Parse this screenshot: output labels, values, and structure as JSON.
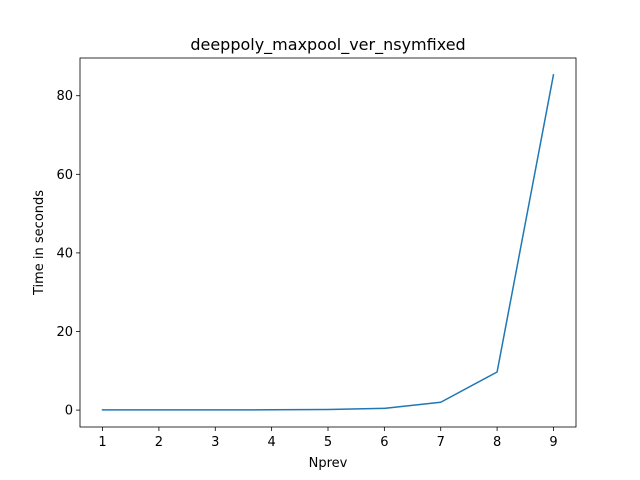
{
  "chart_data": {
    "type": "line",
    "title": "deeppoly_maxpool_ver_nsymfixed",
    "xlabel": "Nprev",
    "ylabel": "Time in seconds",
    "x": [
      1,
      2,
      3,
      4,
      5,
      6,
      7,
      8,
      9
    ],
    "series": [
      {
        "values": [
          0.05,
          0.05,
          0.05,
          0.08,
          0.15,
          0.45,
          2.0,
          9.7,
          85.3
        ]
      }
    ],
    "xticks": [
      "1",
      "2",
      "3",
      "4",
      "5",
      "6",
      "7",
      "8",
      "9"
    ],
    "yticks": [
      "0",
      "20",
      "40",
      "60",
      "80"
    ],
    "xlim": [
      0.6,
      9.4
    ],
    "ylim": [
      -4.3,
      89.6
    ],
    "grid": false,
    "colors": {
      "line": "#1f77b4",
      "axes": "#000000",
      "background": "#ffffff"
    }
  }
}
